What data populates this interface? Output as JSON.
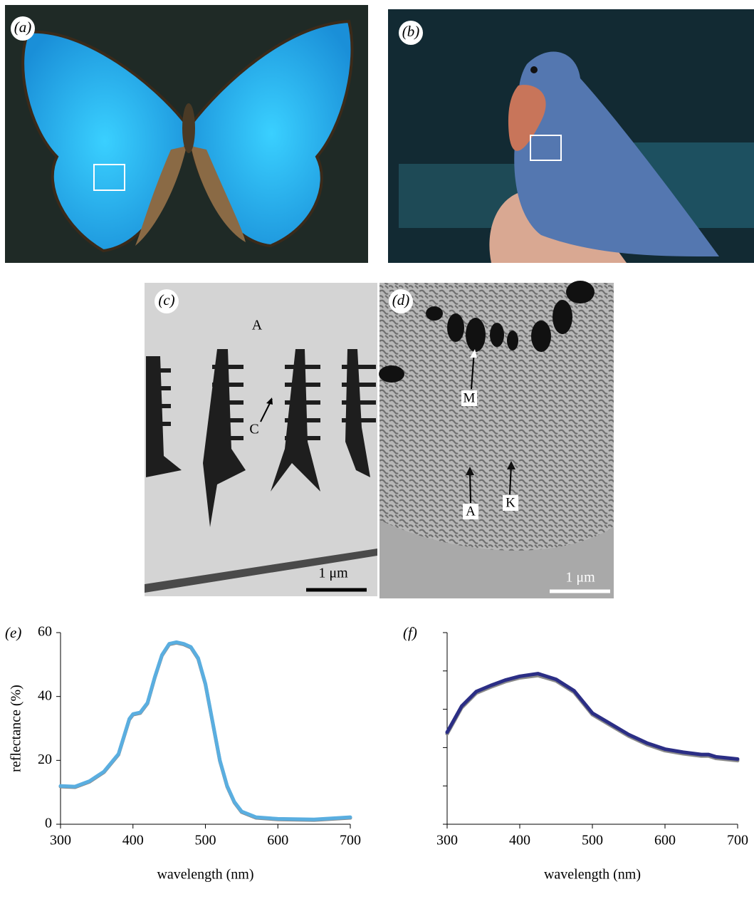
{
  "figure": {
    "panel_a": {
      "label": "(a)"
    },
    "panel_b": {
      "label": "(b)"
    },
    "panel_c": {
      "label": "(c)",
      "annotations": [
        "A",
        "C"
      ],
      "scale_bar": "1 μm"
    },
    "panel_d": {
      "label": "(d)",
      "annotations": [
        "M",
        "A",
        "K"
      ],
      "scale_bar": "1 μm"
    }
  },
  "chart_data": [
    {
      "type": "line",
      "panel_label": "(e)",
      "xlabel": "wavelength (nm)",
      "ylabel": "reflectance (%)",
      "xlim": [
        300,
        700
      ],
      "ylim": [
        0,
        60
      ],
      "xticks": [
        300,
        400,
        500,
        600,
        700
      ],
      "yticks": [
        0,
        20,
        40,
        60
      ],
      "ytick_labels": true,
      "x": [
        300,
        320,
        340,
        350,
        360,
        380,
        395,
        400,
        410,
        420,
        430,
        440,
        450,
        460,
        470,
        480,
        490,
        500,
        510,
        520,
        530,
        540,
        550,
        570,
        600,
        650,
        700
      ],
      "series": [
        {
          "color": "#8a8a8a",
          "values": [
            11.8,
            11.6,
            13.3,
            14.8,
            16.3,
            21.8,
            32.8,
            34.3,
            34.8,
            37.8,
            45.8,
            52.8,
            56.3,
            56.8,
            56.3,
            55.3,
            51.8,
            43.8,
            31.8,
            19.8,
            11.8,
            6.8,
            3.8,
            2.0,
            1.5,
            1.3,
            2.0
          ]
        },
        {
          "color": "#5aaee0",
          "values": [
            12,
            11.8,
            13.5,
            15,
            16.5,
            22,
            33,
            34.5,
            35,
            38,
            46,
            53,
            56.5,
            57,
            56.5,
            55.5,
            52,
            44,
            32,
            20,
            12,
            7,
            4,
            2.2,
            1.7,
            1.5,
            2.2
          ]
        }
      ]
    },
    {
      "type": "line",
      "panel_label": "(f)",
      "xlabel": "wavelength (nm)",
      "xlim": [
        300,
        700
      ],
      "ylim": [
        0,
        25
      ],
      "xticks": [
        300,
        400,
        500,
        600,
        700
      ],
      "yticks": [
        0,
        5,
        10,
        15,
        20,
        25
      ],
      "ytick_labels": false,
      "x": [
        300,
        310,
        320,
        340,
        360,
        380,
        400,
        425,
        450,
        475,
        500,
        525,
        550,
        575,
        600,
        625,
        650,
        660,
        670,
        680,
        700
      ],
      "series": [
        {
          "color": "#8a8a8a",
          "values": [
            11.8,
            13.5,
            15.2,
            17.1,
            17.9,
            18.6,
            19.1,
            19.4,
            18.7,
            17.2,
            14.3,
            12.9,
            11.5,
            10.4,
            9.6,
            9.2,
            8.9,
            8.9,
            8.6,
            8.5,
            8.3
          ]
        },
        {
          "color": "#2b2e85",
          "values": [
            12,
            13.7,
            15.4,
            17.3,
            18.1,
            18.8,
            19.3,
            19.65,
            18.9,
            17.4,
            14.5,
            13.1,
            11.7,
            10.6,
            9.8,
            9.4,
            9.1,
            9.1,
            8.8,
            8.7,
            8.5
          ]
        }
      ]
    }
  ]
}
